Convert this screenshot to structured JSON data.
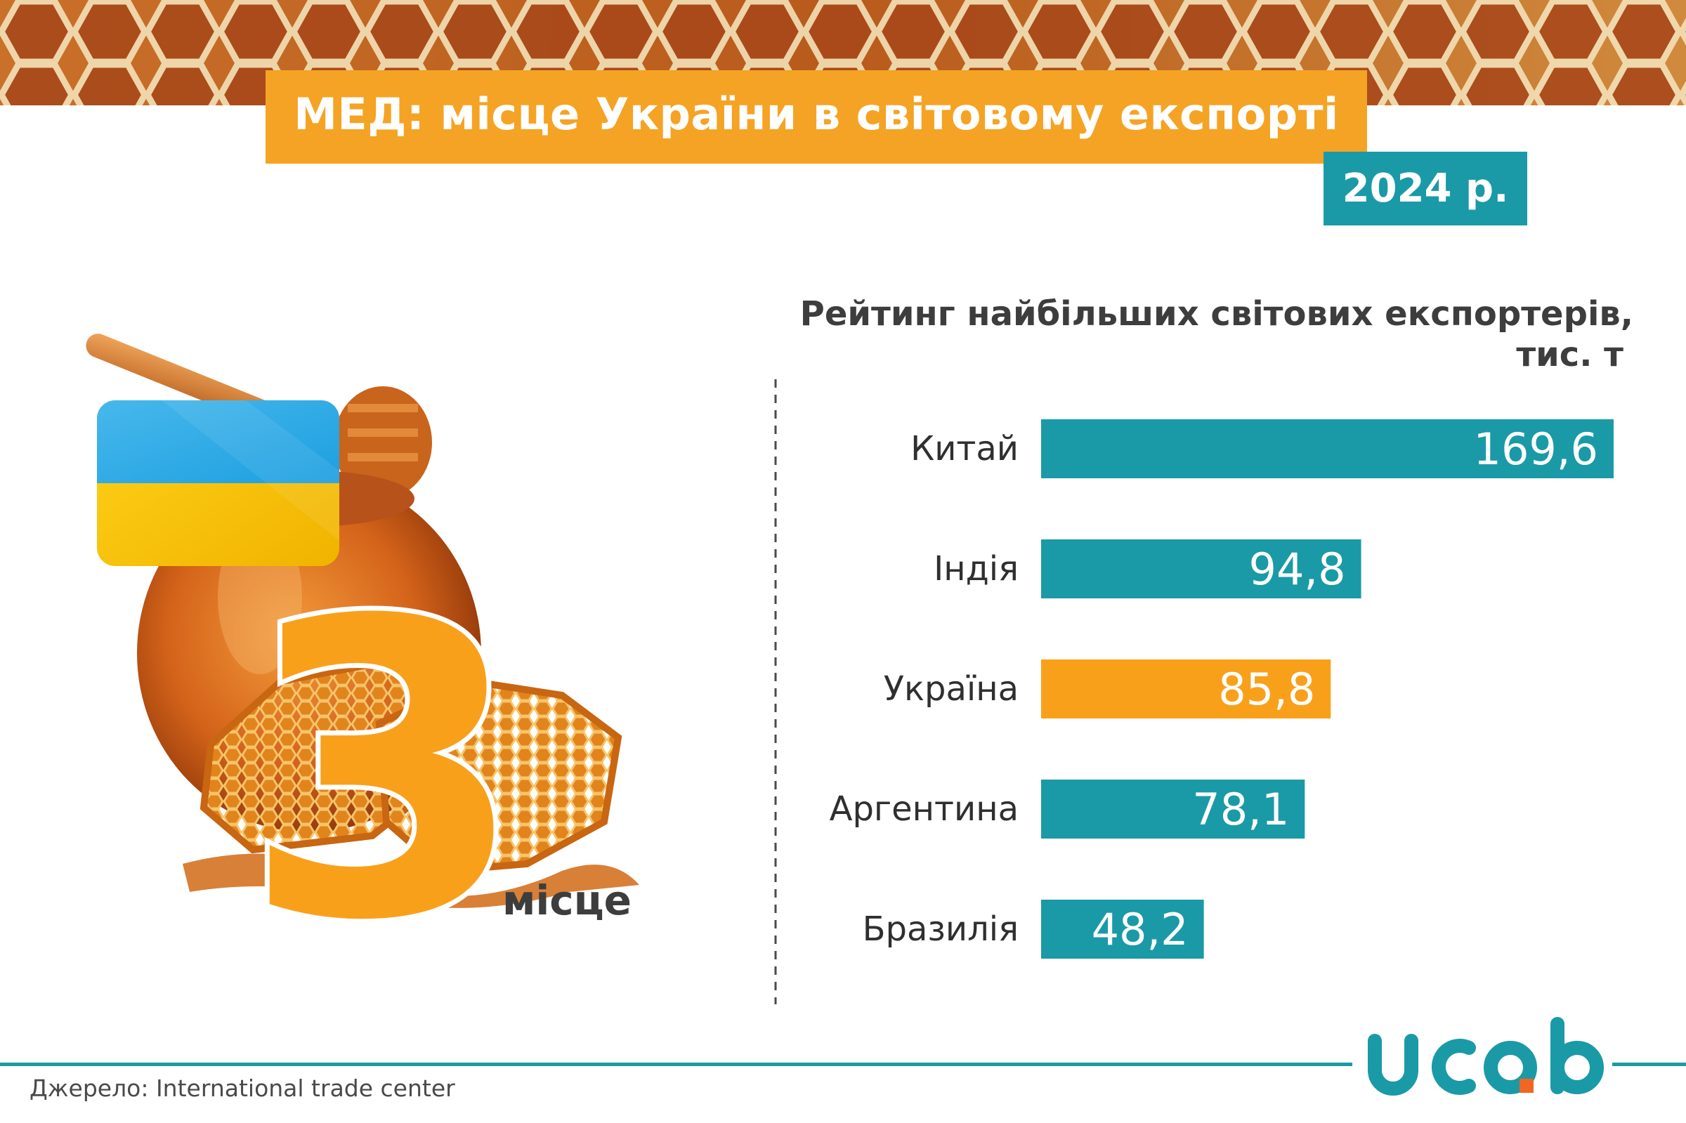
{
  "header": {
    "title": "МЕД: місце України в світовому експорті",
    "year": "2024 р."
  },
  "highlight": {
    "rank": "3",
    "rank_label": "місце"
  },
  "chart_data": {
    "type": "bar",
    "orientation": "horizontal",
    "title_line1": "Рейтинг найбільших світових експортерів,",
    "title_line2": "тис. т",
    "categories": [
      "Китай",
      "Індія",
      "Україна",
      "Аргентина",
      "Бразилія"
    ],
    "values": [
      169.6,
      94.8,
      85.8,
      78.1,
      48.2
    ],
    "value_labels": [
      "169,6",
      "94,8",
      "85,8",
      "78,1",
      "48,2"
    ],
    "highlight_category": "Україна",
    "colors": {
      "default": "#1a9aa6",
      "highlight": "#f9a01b"
    },
    "xlim": [
      0,
      169.6
    ],
    "grid": false
  },
  "footer": {
    "source": "Джерело: International trade center",
    "logo_text": "ucab"
  },
  "colors": {
    "accent_orange": "#f5a324",
    "accent_teal": "#1a9aa6",
    "text_dark": "#3d3d3d",
    "logo_dot": "#f26522"
  }
}
